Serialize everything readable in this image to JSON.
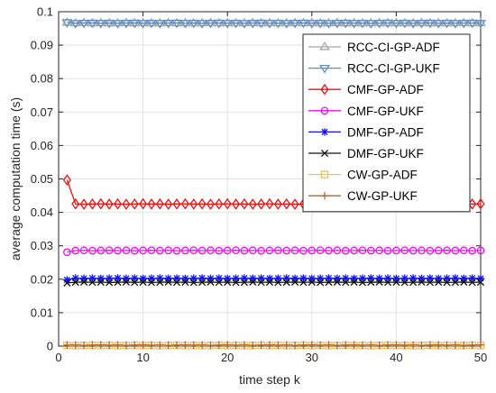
{
  "chart_data": {
    "type": "line",
    "xlabel": "time step k",
    "ylabel": "average computation time (s)",
    "xlim": [
      0,
      50
    ],
    "ylim": [
      0,
      0.1
    ],
    "xticks": [
      "0",
      "10",
      "20",
      "30",
      "40",
      "50"
    ],
    "yticks": [
      "0",
      "0.01",
      "0.02",
      "0.03",
      "0.04",
      "0.05",
      "0.06",
      "0.07",
      "0.08",
      "0.09",
      "0.1"
    ],
    "grid": true,
    "legend_position": "top-right",
    "x": [
      1,
      2,
      3,
      4,
      5,
      6,
      7,
      8,
      9,
      10,
      11,
      12,
      13,
      14,
      15,
      16,
      17,
      18,
      19,
      20,
      21,
      22,
      23,
      24,
      25,
      26,
      27,
      28,
      29,
      30,
      31,
      32,
      33,
      34,
      35,
      36,
      37,
      38,
      39,
      40,
      41,
      42,
      43,
      44,
      45,
      46,
      47,
      48,
      49,
      50
    ],
    "series": [
      {
        "name": "RCC-CI-GP-ADF",
        "color": "#a6a6a6",
        "marker": "triangle-up",
        "start": 0.0968,
        "steady": 0.0966
      },
      {
        "name": "RCC-CI-GP-UKF",
        "color": "#5b8ec7",
        "marker": "triangle-down",
        "start": 0.0968,
        "steady": 0.0966
      },
      {
        "name": "CMF-GP-ADF",
        "color": "#ee1111",
        "marker": "diamond",
        "start": 0.0497,
        "steady": 0.0425
      },
      {
        "name": "CMF-GP-UKF",
        "color": "#ee11ee",
        "marker": "circle",
        "start": 0.0281,
        "steady": 0.0286
      },
      {
        "name": "DMF-GP-ADF",
        "color": "#1111ee",
        "marker": "asterisk",
        "start": 0.0198,
        "steady": 0.0203
      },
      {
        "name": "DMF-GP-UKF",
        "color": "#111111",
        "marker": "x",
        "start": 0.0189,
        "steady": 0.0191
      },
      {
        "name": "CW-GP-ADF",
        "color": "#e8c35a",
        "marker": "square",
        "start": 0.0002,
        "steady": 0.0002
      },
      {
        "name": "CW-GP-UKF",
        "color": "#b7622b",
        "marker": "plus",
        "start": 0.0003,
        "steady": 0.0003
      }
    ]
  }
}
